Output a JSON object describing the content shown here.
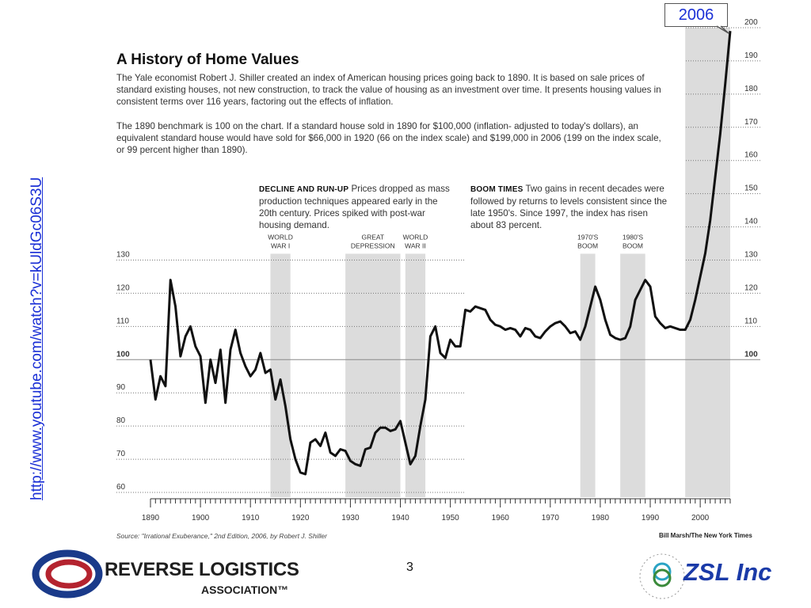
{
  "link": "http://www.youtube.com/watch?v=kUldGc06S3U",
  "callout": "2006",
  "title": "A History of Home Values",
  "intro1": "The Yale economist Robert J. Shiller created an index of American housing prices going back to 1890. It is based on sale prices of standard existing houses, not new construction, to track the value of housing as an investment over time. It presents housing values in consistent terms over 116 years, factoring out the effects of inflation.",
  "intro2": "The 1890 benchmark is 100 on the chart. If a standard house sold in 1890 for $100,000 (inflation- adjusted to today's dollars), an equivalent standard house would have sold for $66,000 in 1920 (66 on the index scale) and $199,000 in 2006 (199 on the index scale, or 99 percent higher than 1890).",
  "note_decline_head": "DECLINE AND RUN-UP",
  "note_decline_body": "Prices dropped as mass production techniques appeared early in the 20th century. Prices spiked with post-war housing demand.",
  "note_boom_head": "BOOM TIMES",
  "note_boom_body": "Two gains in recent decades were followed by returns to levels consistent since the late 1950's. Since 1997, the index has risen about 83 percent.",
  "source": "Source: \"Irrational Exuberance,\" 2nd Edition, 2006, by Robert J. Shiller",
  "credit": "Bill Marsh/The New York Times",
  "page_number": "3",
  "logo_left": {
    "line1": "REVERSE LOGISTICS",
    "line2": "ASSOCIATION™"
  },
  "logo_right": {
    "text": "ZSL Inc",
    "ring": "Emerge... Power... Evolve..."
  },
  "chart_data": {
    "type": "line",
    "x_ticks": [
      1890,
      1900,
      1910,
      1920,
      1930,
      1940,
      1950,
      1960,
      1970,
      1980,
      1990,
      2000
    ],
    "y_ticks_left": [
      60,
      70,
      80,
      90,
      100,
      110,
      120,
      130
    ],
    "y_ticks_right": [
      100,
      110,
      120,
      130,
      140,
      150,
      160,
      170,
      180,
      190,
      200
    ],
    "xlim": [
      1890,
      2006
    ],
    "ylim": [
      60,
      200
    ],
    "baseline": 100,
    "shaded_periods": [
      {
        "label": [
          "WORLD",
          "WAR I"
        ],
        "start": 1914,
        "end": 1918
      },
      {
        "label": [
          "GREAT",
          "DEPRESSION"
        ],
        "start": 1929,
        "end": 1940
      },
      {
        "label": [
          "WORLD",
          "WAR II"
        ],
        "start": 1941,
        "end": 1945
      },
      {
        "label": [
          "1970'S",
          "BOOM"
        ],
        "start": 1976,
        "end": 1979
      },
      {
        "label": [
          "1980'S",
          "BOOM"
        ],
        "start": 1984,
        "end": 1989
      },
      {
        "label": [],
        "start": 1997,
        "end": 2006
      }
    ],
    "series": [
      {
        "x": [
          1890,
          1891,
          1892,
          1893,
          1894,
          1895,
          1896,
          1897,
          1898,
          1899,
          1900,
          1901,
          1902,
          1903,
          1904,
          1905,
          1906,
          1907,
          1908,
          1909,
          1910,
          1911,
          1912,
          1913,
          1914,
          1915,
          1916,
          1917,
          1918,
          1919,
          1920,
          1921,
          1922,
          1923,
          1924,
          1925,
          1926,
          1927,
          1928,
          1929,
          1930,
          1931,
          1932,
          1933,
          1934,
          1935,
          1936,
          1937,
          1938,
          1939,
          1940,
          1941,
          1942,
          1943,
          1944,
          1945,
          1946,
          1947,
          1948,
          1949,
          1950,
          1951,
          1952,
          1953,
          1954,
          1955,
          1956,
          1957,
          1958,
          1959,
          1960,
          1961,
          1962,
          1963,
          1964,
          1965,
          1966,
          1967,
          1968,
          1969,
          1970,
          1971,
          1972,
          1973,
          1974,
          1975,
          1976,
          1977,
          1978,
          1979,
          1980,
          1981,
          1982,
          1983,
          1984,
          1985,
          1986,
          1987,
          1988,
          1989,
          1990,
          1991,
          1992,
          1993,
          1994,
          1995,
          1996,
          1997,
          1998,
          1999,
          2000,
          2001,
          2002,
          2003,
          2004,
          2005,
          2006
        ],
        "y": [
          100,
          88,
          95,
          92,
          124,
          116,
          101,
          107,
          110,
          104,
          101,
          87,
          100,
          93,
          103,
          87,
          103,
          109,
          102,
          98,
          95,
          97,
          102,
          96,
          97,
          88,
          94,
          86,
          76,
          70,
          66,
          65.5,
          75,
          76,
          74,
          78,
          72,
          71,
          73,
          72.5,
          69.5,
          68.5,
          68,
          73,
          73.5,
          78,
          79.5,
          79.5,
          78.5,
          79,
          81.5,
          75,
          68.5,
          71,
          80,
          88,
          107,
          110,
          102,
          100.5,
          106,
          104,
          104,
          115,
          114.5,
          116,
          115.5,
          115,
          112,
          110.5,
          110,
          109,
          109.5,
          109,
          107,
          109.5,
          109,
          107,
          106.5,
          108.5,
          110,
          111,
          111.5,
          110,
          108,
          108.5,
          106,
          110,
          116,
          122,
          118,
          112,
          107.5,
          106.5,
          106,
          106.5,
          110,
          118,
          121,
          124,
          122,
          113,
          111,
          109.5,
          110,
          109.5,
          109,
          109,
          112,
          118,
          125,
          132,
          142,
          155,
          168,
          183,
          199
        ]
      }
    ]
  }
}
